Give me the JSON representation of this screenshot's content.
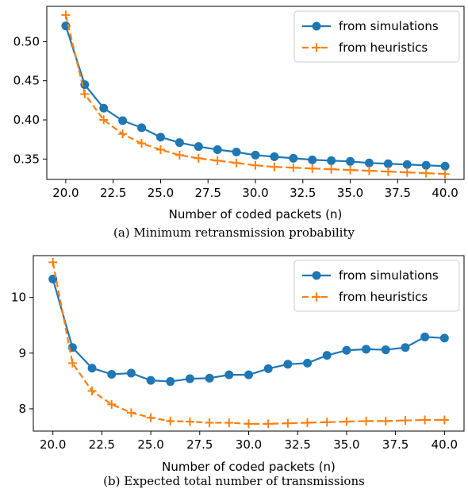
{
  "chart_data": [
    {
      "type": "line",
      "caption": "(a) Minimum retransmission probability",
      "xlabel": "Number of coded packets (n)",
      "ylabel": "",
      "xlim": [
        19.0,
        41.0
      ],
      "ylim": [
        0.324,
        0.545
      ],
      "xticks": [
        "20.0",
        "22.5",
        "25.0",
        "27.5",
        "30.0",
        "32.5",
        "35.0",
        "37.5",
        "40.0"
      ],
      "yticks": [
        "0.35",
        "0.40",
        "0.45",
        "0.50"
      ],
      "legend_position": "top-right",
      "x": [
        20,
        21,
        22,
        23,
        24,
        25,
        26,
        27,
        28,
        29,
        30,
        31,
        32,
        33,
        34,
        35,
        36,
        37,
        38,
        39,
        40
      ],
      "series": [
        {
          "name": "from simulations",
          "color": "#1f77b4",
          "style": "solid-circle",
          "values": [
            0.52,
            0.445,
            0.415,
            0.399,
            0.39,
            0.378,
            0.371,
            0.366,
            0.362,
            0.359,
            0.355,
            0.353,
            0.351,
            0.349,
            0.348,
            0.347,
            0.345,
            0.344,
            0.343,
            0.342,
            0.341
          ]
        },
        {
          "name": "from heuristics",
          "color": "#ff7f0e",
          "style": "dashed-plus",
          "values": [
            0.534,
            0.433,
            0.4,
            0.382,
            0.37,
            0.362,
            0.355,
            0.351,
            0.348,
            0.345,
            0.342,
            0.34,
            0.339,
            0.338,
            0.337,
            0.336,
            0.335,
            0.334,
            0.333,
            0.332,
            0.331
          ]
        }
      ]
    },
    {
      "type": "line",
      "caption": "(b) Expected total number of transmissions",
      "xlabel": "Number of coded packets (n)",
      "ylabel": "",
      "xlim": [
        19.0,
        41.0
      ],
      "ylim": [
        7.6,
        10.75
      ],
      "xticks": [
        "20.0",
        "22.5",
        "25.0",
        "27.5",
        "30.0",
        "32.5",
        "35.0",
        "37.5",
        "40.0"
      ],
      "yticks": [
        "8",
        "9",
        "10"
      ],
      "legend_position": "top-right",
      "x": [
        20,
        21,
        22,
        23,
        24,
        25,
        26,
        27,
        28,
        29,
        30,
        31,
        32,
        33,
        34,
        35,
        36,
        37,
        38,
        39,
        40
      ],
      "series": [
        {
          "name": "from simulations",
          "color": "#1f77b4",
          "style": "solid-circle",
          "values": [
            10.33,
            9.1,
            8.73,
            8.62,
            8.64,
            8.51,
            8.49,
            8.54,
            8.55,
            8.61,
            8.61,
            8.72,
            8.8,
            8.82,
            8.96,
            9.05,
            9.07,
            9.06,
            9.1,
            9.29,
            9.27
          ]
        },
        {
          "name": "from heuristics",
          "color": "#ff7f0e",
          "style": "dashed-plus",
          "values": [
            10.63,
            8.82,
            8.32,
            8.08,
            7.93,
            7.84,
            7.78,
            7.77,
            7.75,
            7.75,
            7.73,
            7.73,
            7.74,
            7.75,
            7.76,
            7.77,
            7.78,
            7.78,
            7.79,
            7.8,
            7.8
          ]
        }
      ]
    }
  ]
}
